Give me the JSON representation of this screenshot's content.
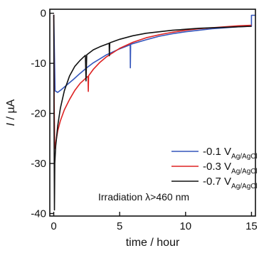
{
  "chart_data": {
    "type": "line",
    "xlabel": "time / hour",
    "ylabel": "I / µA",
    "ylabel_parts": {
      "var": "I",
      "unit": " / µA"
    },
    "xlim": [
      -0.3,
      15.3
    ],
    "ylim": [
      -40.5,
      0.8
    ],
    "xticks": [
      0,
      5,
      10,
      15
    ],
    "yticks": [
      0,
      -10,
      -20,
      -30,
      -40
    ],
    "xtick_labels": [
      "0",
      "5",
      "10",
      "15"
    ],
    "ytick_labels": [
      "0",
      "-10",
      "-20",
      "-30",
      "-40"
    ],
    "grid": false,
    "legend_position": "center-right",
    "annotation": "Irradiation λ>460 nm",
    "series": [
      {
        "label_main": "-0.1 V",
        "label_sub": "Ag/AgCl",
        "color": "#3355bb",
        "points": [
          [
            0.0,
            -0.3
          ],
          [
            0.05,
            -8
          ],
          [
            0.1,
            -15.5
          ],
          [
            0.3,
            -15.8
          ],
          [
            0.6,
            -15.2
          ],
          [
            1.0,
            -14.3
          ],
          [
            1.5,
            -13.2
          ],
          [
            2.0,
            -12.0
          ],
          [
            2.5,
            -10.9
          ],
          [
            3.0,
            -9.9
          ],
          [
            3.5,
            -9.1
          ],
          [
            4.0,
            -8.3
          ],
          [
            5.0,
            -7.1
          ],
          [
            5.8,
            -6.3
          ],
          [
            5.81,
            -10.9
          ],
          [
            5.83,
            -6.2
          ],
          [
            7.0,
            -5.3
          ],
          [
            8.0,
            -4.6
          ],
          [
            9.0,
            -4.1
          ],
          [
            10.0,
            -3.7
          ],
          [
            11.0,
            -3.4
          ],
          [
            12.0,
            -3.1
          ],
          [
            13.0,
            -2.9
          ],
          [
            14.0,
            -2.7
          ],
          [
            15.0,
            -2.6
          ],
          [
            15.0,
            -0.4
          ],
          [
            15.3,
            -0.4
          ]
        ]
      },
      {
        "label_main": "-0.3 V",
        "label_sub": "Ag/AgCl",
        "color": "#dd2222",
        "points": [
          [
            0.0,
            -0.3
          ],
          [
            0.03,
            -18
          ],
          [
            0.08,
            -27
          ],
          [
            0.15,
            -26.0
          ],
          [
            0.3,
            -23.5
          ],
          [
            0.5,
            -21.5
          ],
          [
            0.8,
            -19.3
          ],
          [
            1.2,
            -17.2
          ],
          [
            1.6,
            -15.4
          ],
          [
            2.0,
            -14.0
          ],
          [
            2.5,
            -12.8
          ],
          [
            2.6,
            -12.6
          ],
          [
            2.62,
            -15.6
          ],
          [
            2.64,
            -12.5
          ],
          [
            3.0,
            -11.2
          ],
          [
            3.5,
            -9.8
          ],
          [
            4.0,
            -8.7
          ],
          [
            5.0,
            -7.0
          ],
          [
            6.0,
            -5.8
          ],
          [
            7.0,
            -4.9
          ],
          [
            8.0,
            -4.3
          ],
          [
            9.0,
            -3.8
          ],
          [
            10.0,
            -3.4
          ],
          [
            11.0,
            -3.1
          ],
          [
            12.0,
            -2.9
          ],
          [
            13.0,
            -2.7
          ],
          [
            14.0,
            -2.5
          ],
          [
            15.0,
            -2.4
          ]
        ]
      },
      {
        "label_main": "-0.7 V",
        "label_sub": "Ag/AgCl",
        "color": "#111111",
        "points": [
          [
            0.0,
            -0.3
          ],
          [
            0.02,
            -20
          ],
          [
            0.05,
            -39.3
          ],
          [
            0.08,
            -30
          ],
          [
            0.15,
            -26.5
          ],
          [
            0.3,
            -22.5
          ],
          [
            0.5,
            -19.0
          ],
          [
            0.8,
            -15.5
          ],
          [
            1.2,
            -12.5
          ],
          [
            1.6,
            -10.6
          ],
          [
            2.0,
            -9.4
          ],
          [
            2.4,
            -8.4
          ],
          [
            2.45,
            -13.5
          ],
          [
            2.5,
            -8.3
          ],
          [
            3.0,
            -7.3
          ],
          [
            3.5,
            -6.7
          ],
          [
            4.0,
            -6.2
          ],
          [
            4.2,
            -6.0
          ],
          [
            4.22,
            -8.5
          ],
          [
            4.25,
            -5.9
          ],
          [
            5.0,
            -5.2
          ],
          [
            6.0,
            -4.5
          ],
          [
            7.0,
            -4.0
          ],
          [
            8.0,
            -3.7
          ],
          [
            9.0,
            -3.4
          ],
          [
            10.0,
            -3.2
          ],
          [
            11.0,
            -3.0
          ],
          [
            12.0,
            -2.9
          ],
          [
            13.0,
            -2.8
          ],
          [
            14.0,
            -2.7
          ],
          [
            15.0,
            -2.6
          ]
        ]
      }
    ]
  }
}
